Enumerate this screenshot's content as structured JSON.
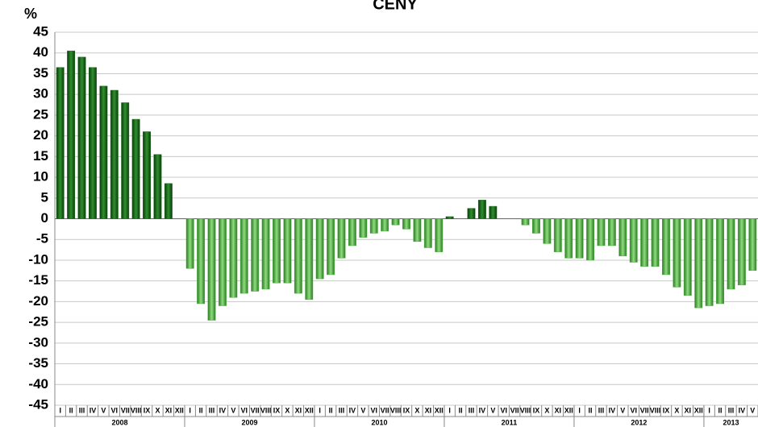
{
  "chart_data": {
    "type": "bar",
    "title": "CENY",
    "y_label": "%",
    "categories": [
      "I",
      "II",
      "III",
      "IV",
      "V",
      "VI",
      "VII",
      "VIII",
      "IX",
      "X",
      "XI",
      "XII",
      "I",
      "II",
      "III",
      "IV",
      "V",
      "VI",
      "VII",
      "VIII",
      "IX",
      "X",
      "XI",
      "XII",
      "I",
      "II",
      "III",
      "IV",
      "V",
      "VI",
      "VII",
      "VIII",
      "IX",
      "X",
      "XI",
      "XII",
      "I",
      "II",
      "III",
      "IV",
      "V",
      "VI",
      "VII",
      "VIII",
      "IX",
      "X",
      "XI",
      "XII",
      "I",
      "II",
      "III",
      "IV",
      "V",
      "VI",
      "VII",
      "VIII",
      "IX",
      "X",
      "XI",
      "XII",
      "I",
      "II",
      "III",
      "IV",
      "V"
    ],
    "groups": [
      {
        "label": "2008",
        "span": 12
      },
      {
        "label": "2009",
        "span": 12
      },
      {
        "label": "2010",
        "span": 12
      },
      {
        "label": "2011",
        "span": 12
      },
      {
        "label": "2012",
        "span": 12
      },
      {
        "label": "2013",
        "span": 5
      }
    ],
    "values": [
      36.5,
      40.5,
      39,
      36.5,
      32,
      31,
      28,
      24,
      21,
      15.5,
      8.5,
      null,
      -12,
      -20.5,
      -24.5,
      -21,
      -19,
      -18,
      -17.5,
      -17,
      -15.5,
      -15.5,
      -18,
      -19.5,
      -14.5,
      -13.5,
      -9.5,
      -6.5,
      -4.5,
      -3.5,
      -3,
      -1.5,
      -2.5,
      -5.5,
      -7,
      -8,
      0.5,
      0,
      2.5,
      4.5,
      3,
      0,
      0,
      -1.5,
      -3.5,
      -6,
      -8,
      -9.5,
      -9.5,
      -10,
      -6.5,
      -6.5,
      -9,
      -10.5,
      -11.5,
      -11.5,
      -13.5,
      -16.5,
      -18.5,
      -21.5,
      -21,
      -20.5,
      -17,
      -16,
      -12.5
    ],
    "color_positive": "#1c6e1c",
    "color_negative": "#4fb143",
    "ylim": [
      -45,
      45
    ],
    "yticks": [
      -45,
      -40,
      -35,
      -30,
      -25,
      -20,
      -15,
      -10,
      -5,
      0,
      5,
      10,
      15,
      20,
      25,
      30,
      35,
      40,
      45
    ],
    "grid": true
  }
}
